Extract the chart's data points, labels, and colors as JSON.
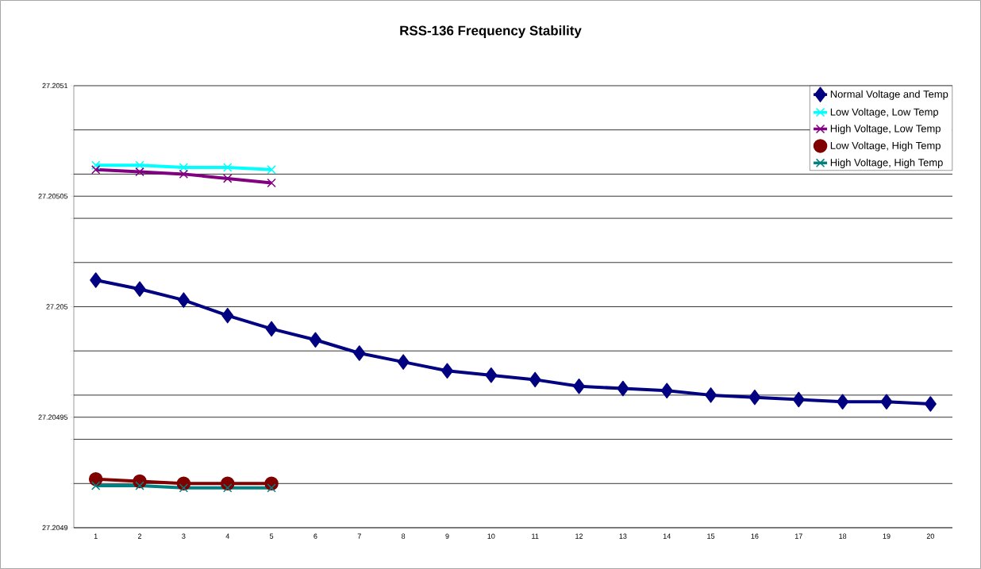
{
  "chart_data": {
    "type": "line",
    "title": "RSS-136 Frequency Stability",
    "categories": [
      "1",
      "2",
      "3",
      "4",
      "5",
      "6",
      "7",
      "8",
      "9",
      "10",
      "11",
      "12",
      "13",
      "14",
      "15",
      "16",
      "17",
      "18",
      "19",
      "20"
    ],
    "series": [
      {
        "name": "Normal Voltage and Temp",
        "color": "#000080",
        "marker": "diamond",
        "values": [
          27.205012,
          27.205008,
          27.205003,
          27.204996,
          27.20499,
          27.204985,
          27.204979,
          27.204975,
          27.204971,
          27.204969,
          27.204967,
          27.204964,
          27.204963,
          27.204962,
          27.20496,
          27.204959,
          27.204958,
          27.204957,
          27.204957,
          27.204956
        ]
      },
      {
        "name": "Low Voltage, Low Temp",
        "color": "#00ffff",
        "marker": "cross",
        "values": [
          27.205064,
          27.205064,
          27.205063,
          27.205063,
          27.205062,
          null,
          null,
          null,
          null,
          null,
          null,
          null,
          null,
          null,
          null,
          null,
          null,
          null,
          null,
          null
        ]
      },
      {
        "name": "High Voltage, Low Temp",
        "color": "#800080",
        "marker": "cross",
        "values": [
          27.205062,
          27.205061,
          27.20506,
          27.205058,
          27.205056,
          null,
          null,
          null,
          null,
          null,
          null,
          null,
          null,
          null,
          null,
          null,
          null,
          null,
          null,
          null
        ]
      },
      {
        "name": "Low Voltage, High Temp",
        "color": "#800000",
        "marker": "circle",
        "values": [
          27.204922,
          27.204921,
          27.20492,
          27.20492,
          27.20492,
          null,
          null,
          null,
          null,
          null,
          null,
          null,
          null,
          null,
          null,
          null,
          null,
          null,
          null,
          null
        ]
      },
      {
        "name": "High Voltage, High Temp",
        "color": "#008080",
        "marker": "cross",
        "values": [
          27.204919,
          27.204919,
          27.204918,
          27.204918,
          27.204918,
          null,
          null,
          null,
          null,
          null,
          null,
          null,
          null,
          null,
          null,
          null,
          null,
          null,
          null,
          null
        ]
      }
    ],
    "ylim": [
      27.2049,
      27.2051
    ],
    "yticks": [
      27.2049,
      {
        "value": 27.20492,
        "label": null
      },
      {
        "value": 27.20494,
        "label": null
      },
      27.20495,
      {
        "value": 27.20496,
        "label": null
      },
      {
        "value": 27.20498,
        "label": null
      },
      27.205,
      {
        "value": 27.20502,
        "label": null
      },
      {
        "value": 27.20504,
        "label": null
      },
      27.20505,
      {
        "value": 27.20506,
        "label": null
      },
      {
        "value": 27.20508,
        "label": null
      },
      27.2051
    ],
    "grid": "y",
    "legend": "top right",
    "line_style": "solid"
  }
}
